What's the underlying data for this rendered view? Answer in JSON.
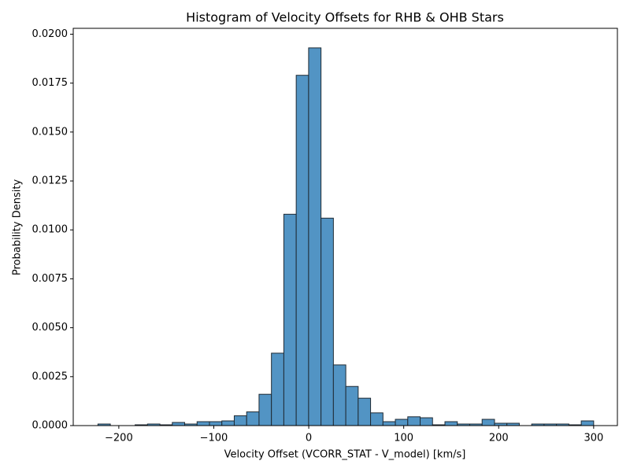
{
  "chart_data": {
    "type": "histogram",
    "title": "Histogram of Velocity Offsets for RHB & OHB Stars",
    "x_label": "Velocity Offset (VCORR_STAT - V_model) [km/s]",
    "y_label": "Probability Density",
    "color": "#5294c4",
    "edgecolor": "#1f2a33",
    "bins": [
      -222,
      -208.95,
      -195.9,
      -182.85,
      -169.8,
      -156.75,
      -143.7,
      -130.65,
      -117.6,
      -104.55,
      -91.5,
      -78.45,
      -65.4,
      -52.35,
      -39.3,
      -26.25,
      -13.2,
      -0.15,
      12.9,
      25.95,
      39,
      52.05,
      65.1,
      78.15,
      91.2,
      104.25,
      117.3,
      130.35,
      143.4,
      156.45,
      169.5,
      182.55,
      195.6,
      208.65,
      221.7,
      234.75,
      247.8,
      260.85,
      273.9,
      286.95,
      300
    ],
    "values": [
      8e-05,
      0,
      0,
      4e-05,
      8e-05,
      4e-05,
      0.00016,
      8e-05,
      0.0002,
      0.0002,
      0.00024,
      0.0005,
      0.0007,
      0.0016,
      0.0037,
      0.0108,
      0.0179,
      0.0193,
      0.0106,
      0.0031,
      0.002,
      0.0014,
      0.00065,
      0.0002,
      0.00032,
      0.00045,
      0.0004,
      4e-05,
      0.0002,
      8e-05,
      8e-05,
      0.00032,
      0.00012,
      0.00012,
      0,
      8e-05,
      8e-05,
      8e-05,
      4e-05,
      0.00024
    ],
    "xlim": [
      -248,
      325
    ],
    "ylim": [
      0,
      0.0203
    ],
    "xticks": [
      {
        "value": -200,
        "label": "−200"
      },
      {
        "value": -100,
        "label": "−100"
      },
      0,
      100,
      200,
      300
    ],
    "yticks": [
      {
        "value": 0,
        "label": "0.0000"
      },
      {
        "value": 0.0025,
        "label": "0.0025"
      },
      {
        "value": 0.005,
        "label": "0.0050"
      },
      {
        "value": 0.0075,
        "label": "0.0075"
      },
      {
        "value": 0.01,
        "label": "0.0100"
      },
      {
        "value": 0.0125,
        "label": "0.0125"
      },
      {
        "value": 0.015,
        "label": "0.0150"
      },
      {
        "value": 0.0175,
        "label": "0.0175"
      },
      {
        "value": 0.02,
        "label": "0.0200"
      }
    ]
  }
}
